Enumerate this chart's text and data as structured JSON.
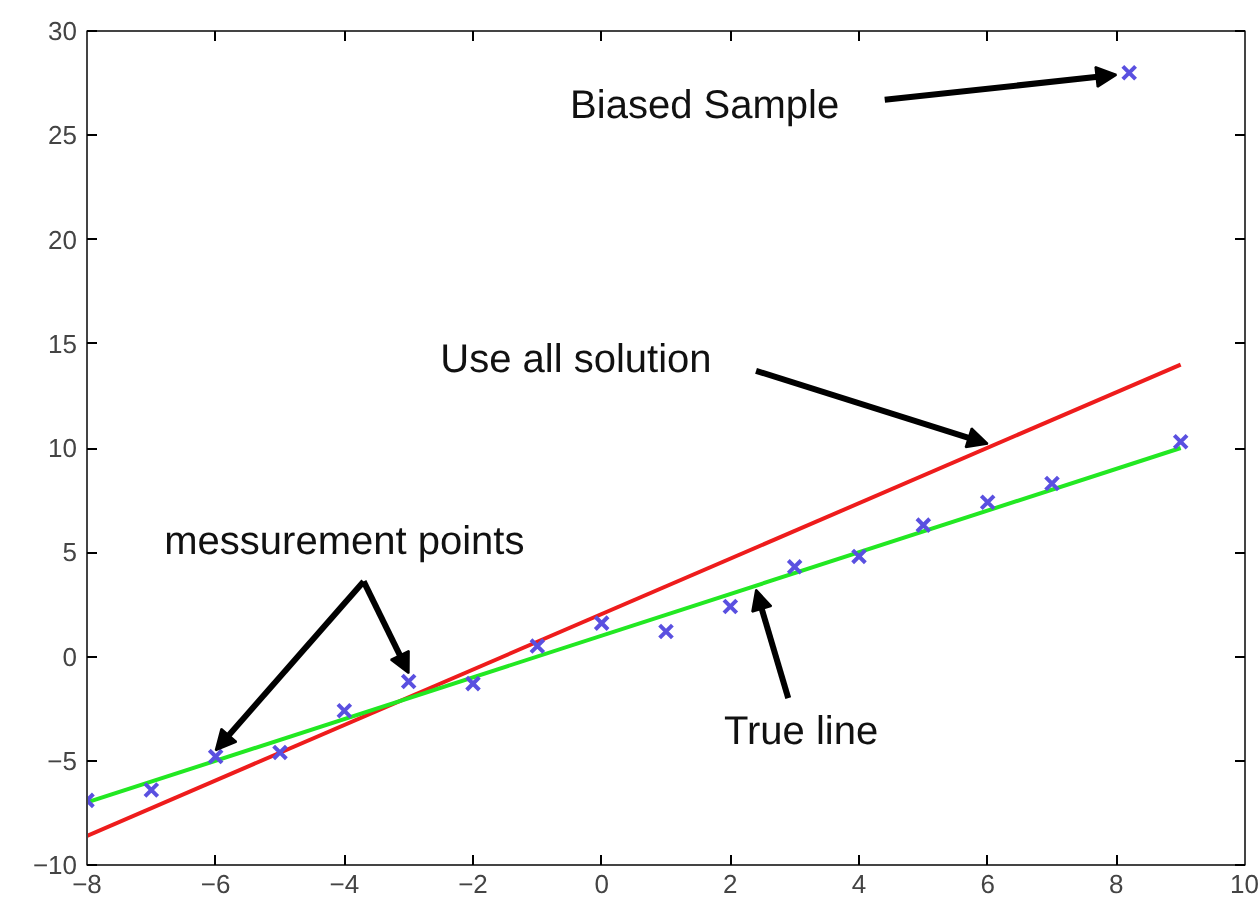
{
  "chart_data": {
    "type": "scatter",
    "xlim": [
      -8,
      10
    ],
    "ylim": [
      -10,
      30
    ],
    "xticks": [
      -8,
      -6,
      -4,
      -2,
      0,
      2,
      4,
      6,
      8,
      10
    ],
    "yticks": [
      -10,
      -5,
      0,
      5,
      10,
      15,
      20,
      25,
      30
    ],
    "grid": false,
    "marker": "cross",
    "series": [
      {
        "type": "line",
        "marker": "none",
        "color": "#ee1c1c",
        "x": [
          -8,
          9
        ],
        "values": [
          -8.6,
          14.0
        ]
      },
      {
        "type": "line",
        "marker": "none",
        "color": "#22e822",
        "x": [
          -8,
          9
        ],
        "values": [
          -7.0,
          10.0
        ]
      },
      {
        "color": "#5a50e0",
        "x": [
          -8,
          -7,
          -6,
          -5,
          -4,
          -3,
          -2,
          -1,
          0,
          1,
          2,
          3,
          4,
          5,
          6,
          7,
          8.2,
          9
        ],
        "values": [
          -6.9,
          -6.4,
          -4.8,
          -4.6,
          -2.6,
          -1.2,
          -1.3,
          0.5,
          1.6,
          1.2,
          2.4,
          4.3,
          4.8,
          6.3,
          7.4,
          8.3,
          28.0,
          10.3
        ]
      }
    ],
    "annotations": [
      {
        "text": "Biased Sample",
        "x": 8.0,
        "y": 27.9
      },
      {
        "text": "Use all solution",
        "x": 6.0,
        "y": 10.2
      },
      {
        "text": "messurement points",
        "x": -6.0,
        "y": -4.5
      },
      {
        "text": "True line",
        "x": 2.4,
        "y": 3.2
      }
    ]
  }
}
